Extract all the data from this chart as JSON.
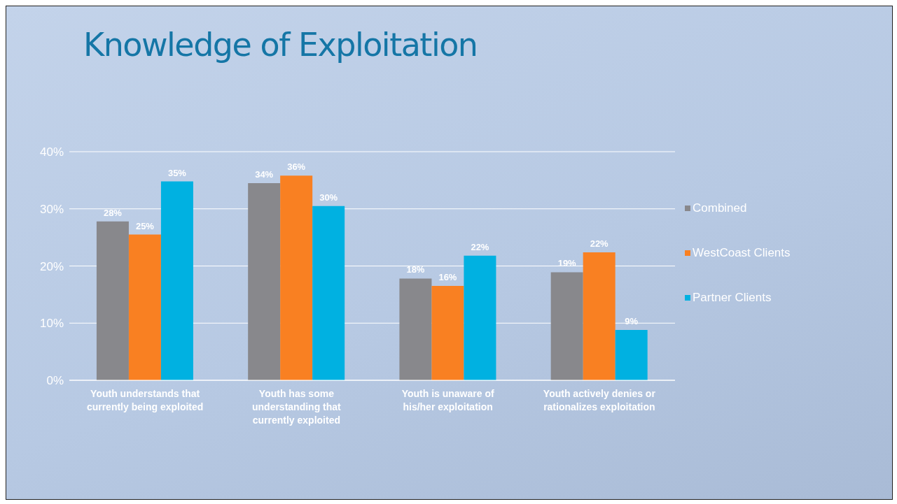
{
  "chart_data": {
    "type": "bar",
    "title": "Knowledge of Exploitation",
    "categories": [
      "Youth understands that currently being exploited",
      "Youth has some understanding that currently exploited",
      "Youth is unaware of his/her exploitation",
      "Youth actively denies or rationalizes exploitation"
    ],
    "series": [
      {
        "name": "Combined",
        "color": "#88888c",
        "values": [
          27.8,
          34.5,
          17.8,
          18.9
        ],
        "value_labels": [
          "28%",
          "34%",
          "18%",
          "19%"
        ]
      },
      {
        "name": "WestCoast Clients",
        "color": "#f98022",
        "values": [
          25.5,
          35.8,
          16.5,
          22.4
        ],
        "value_labels": [
          "25%",
          "36%",
          "16%",
          "22%"
        ]
      },
      {
        "name": "Partner Clients",
        "color": "#00b1e1",
        "values": [
          34.8,
          30.5,
          21.8,
          8.8
        ],
        "value_labels": [
          "35%",
          "30%",
          "22%",
          "9%"
        ]
      }
    ],
    "ylim": [
      0,
      40
    ],
    "yticks": [
      {
        "value": 0,
        "label": "0%"
      },
      {
        "value": 10,
        "label": "10%"
      },
      {
        "value": 20,
        "label": "20%"
      },
      {
        "value": 30,
        "label": "30%"
      },
      {
        "value": 40,
        "label": "40%"
      }
    ],
    "grid": "y",
    "legend": "right"
  }
}
